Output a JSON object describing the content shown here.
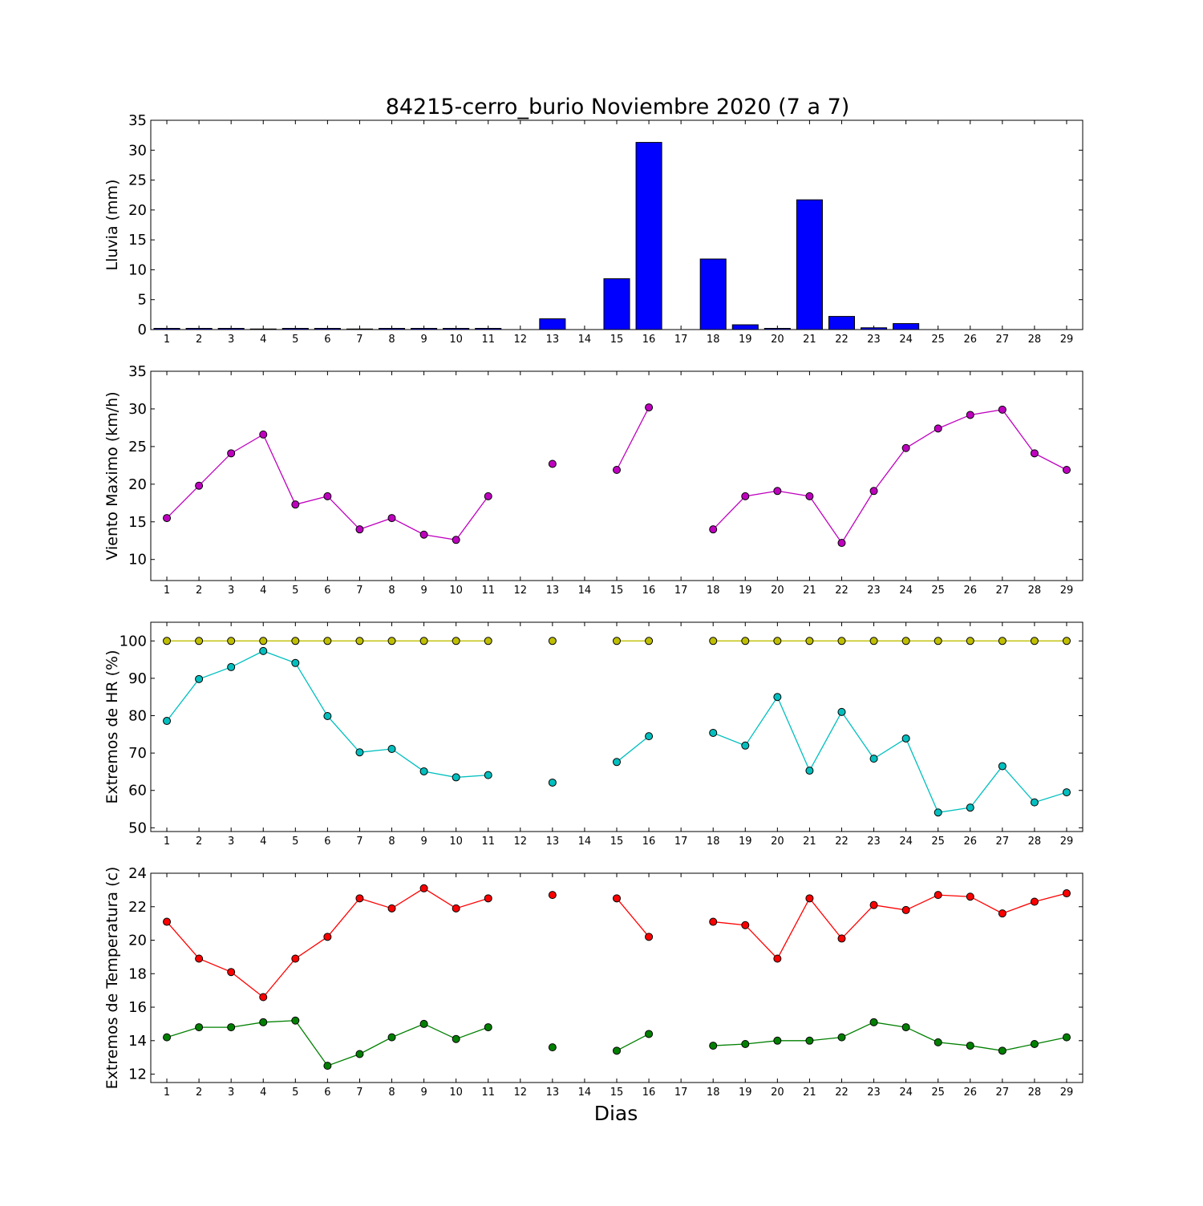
{
  "title": "84215-cerro_burio Noviembre 2020  (7 a 7)",
  "xlabel": "Dias",
  "colors": {
    "rain": "#0000ff",
    "wind": "#bf00bf",
    "hr_max": "#bfbf00",
    "hr_min": "#00bfbf",
    "t_max": "#ff0000",
    "t_min": "#008000"
  },
  "chart_data": [
    {
      "type": "bar",
      "ylabel": "Lluvia (mm)",
      "categories": [
        "1",
        "2",
        "3",
        "4",
        "5",
        "6",
        "7",
        "8",
        "9",
        "10",
        "11",
        "12",
        "13",
        "14",
        "15",
        "16",
        "17",
        "18",
        "19",
        "20",
        "21",
        "22",
        "23",
        "24",
        "25",
        "26",
        "27",
        "28",
        "29"
      ],
      "x": [
        1,
        2,
        3,
        4,
        5,
        6,
        7,
        8,
        9,
        10,
        11,
        12,
        13,
        14,
        15,
        16,
        17,
        18,
        19,
        20,
        21,
        22,
        23,
        24,
        25,
        26,
        27,
        28,
        29
      ],
      "values": [
        0.2,
        0.2,
        0.2,
        0.1,
        0.2,
        0.2,
        0.1,
        0.2,
        0.2,
        0.2,
        0.2,
        null,
        1.8,
        null,
        8.5,
        31.3,
        null,
        11.8,
        0.8,
        0.2,
        21.7,
        2.2,
        0.3,
        1.0,
        0,
        0,
        0,
        0,
        0
      ],
      "ylim": [
        0,
        35
      ],
      "yticks": [
        0,
        5,
        10,
        15,
        20,
        25,
        30,
        35
      ]
    },
    {
      "type": "line",
      "ylabel": "Viento Maximo (km/h)",
      "categories": [
        "1",
        "2",
        "3",
        "4",
        "5",
        "6",
        "7",
        "8",
        "9",
        "10",
        "11",
        "12",
        "13",
        "14",
        "15",
        "16",
        "17",
        "18",
        "19",
        "20",
        "21",
        "22",
        "23",
        "24",
        "25",
        "26",
        "27",
        "28",
        "29"
      ],
      "x": [
        1,
        2,
        3,
        4,
        5,
        6,
        7,
        8,
        9,
        10,
        11,
        12,
        13,
        14,
        15,
        16,
        17,
        18,
        19,
        20,
        21,
        22,
        23,
        24,
        25,
        26,
        27,
        28,
        29
      ],
      "series": [
        {
          "values": [
            15.5,
            19.8,
            24.1,
            26.6,
            17.3,
            18.4,
            14.0,
            15.5,
            13.3,
            12.6,
            18.4,
            null,
            22.7,
            null,
            21.9,
            30.2,
            null,
            14.0,
            18.4,
            19.1,
            18.4,
            12.2,
            19.1,
            24.8,
            27.4,
            29.2,
            29.9,
            24.1,
            21.9
          ]
        }
      ],
      "ylim": [
        7.2,
        35
      ],
      "yticks": [
        10,
        15,
        20,
        25,
        30,
        35
      ]
    },
    {
      "type": "line",
      "ylabel": "Extremos de HR (%)",
      "categories": [
        "1",
        "2",
        "3",
        "4",
        "5",
        "6",
        "7",
        "8",
        "9",
        "10",
        "11",
        "12",
        "13",
        "14",
        "15",
        "16",
        "17",
        "18",
        "19",
        "20",
        "21",
        "22",
        "23",
        "24",
        "25",
        "26",
        "27",
        "28",
        "29"
      ],
      "x": [
        1,
        2,
        3,
        4,
        5,
        6,
        7,
        8,
        9,
        10,
        11,
        12,
        13,
        14,
        15,
        16,
        17,
        18,
        19,
        20,
        21,
        22,
        23,
        24,
        25,
        26,
        27,
        28,
        29
      ],
      "series": [
        {
          "values": [
            100,
            100,
            100,
            100,
            100,
            100,
            100,
            100,
            100,
            100,
            100,
            null,
            100,
            null,
            100,
            100,
            null,
            100,
            100,
            100,
            100,
            100,
            100,
            100,
            100,
            100,
            100,
            100,
            100
          ]
        },
        {
          "values": [
            78.6,
            89.8,
            93.0,
            97.3,
            94.1,
            79.9,
            70.2,
            71.1,
            65.1,
            63.5,
            64.1,
            null,
            62.1,
            null,
            67.6,
            74.5,
            null,
            75.4,
            72.0,
            85.0,
            65.3,
            81.0,
            68.5,
            73.9,
            54.1,
            55.4,
            66.5,
            56.8,
            59.5
          ]
        }
      ],
      "ylim": [
        49,
        105
      ],
      "yticks": [
        50,
        60,
        70,
        80,
        90,
        100
      ]
    },
    {
      "type": "line",
      "ylabel": "Extremos de Temperatura (c)",
      "categories": [
        "1",
        "2",
        "3",
        "4",
        "5",
        "6",
        "7",
        "8",
        "9",
        "10",
        "11",
        "12",
        "13",
        "14",
        "15",
        "16",
        "17",
        "18",
        "19",
        "20",
        "21",
        "22",
        "23",
        "24",
        "25",
        "26",
        "27",
        "28",
        "29"
      ],
      "x": [
        1,
        2,
        3,
        4,
        5,
        6,
        7,
        8,
        9,
        10,
        11,
        12,
        13,
        14,
        15,
        16,
        17,
        18,
        19,
        20,
        21,
        22,
        23,
        24,
        25,
        26,
        27,
        28,
        29
      ],
      "series": [
        {
          "values": [
            21.1,
            18.9,
            18.1,
            16.6,
            18.9,
            20.2,
            22.5,
            21.9,
            23.1,
            21.9,
            22.5,
            null,
            22.7,
            null,
            22.5,
            20.2,
            null,
            21.1,
            20.9,
            18.9,
            22.5,
            20.1,
            22.1,
            21.8,
            22.7,
            22.6,
            21.6,
            22.3,
            22.8
          ]
        },
        {
          "values": [
            14.2,
            14.8,
            14.8,
            15.1,
            15.2,
            12.5,
            13.2,
            14.2,
            15.0,
            14.1,
            14.8,
            null,
            13.6,
            null,
            13.4,
            14.4,
            null,
            13.7,
            13.8,
            14.0,
            14.0,
            14.2,
            15.1,
            14.8,
            13.9,
            13.7,
            13.4,
            13.8,
            14.2
          ]
        }
      ],
      "ylim": [
        11.5,
        24
      ],
      "yticks": [
        12,
        14,
        16,
        18,
        20,
        22,
        24
      ]
    }
  ]
}
